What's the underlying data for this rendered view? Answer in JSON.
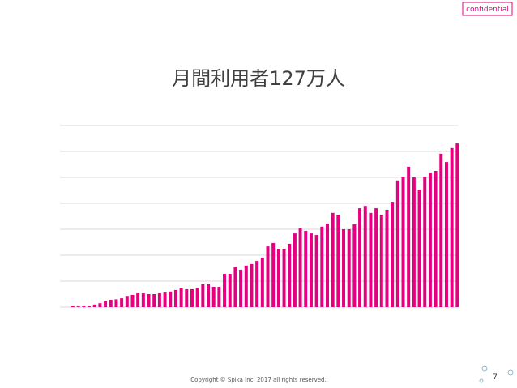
{
  "chart_data": {
    "type": "bar",
    "title": "月間利用者127万人",
    "categories": [
      null,
      null,
      null,
      null,
      null,
      null,
      null,
      null,
      null,
      null,
      null,
      null,
      null,
      null,
      null,
      null,
      null,
      null,
      null,
      null,
      null,
      null,
      null,
      null,
      null,
      null,
      null,
      null,
      null,
      null,
      null,
      null,
      null,
      null,
      null,
      null,
      null,
      null,
      null,
      null,
      null,
      null,
      null,
      null,
      null,
      null,
      null,
      null,
      null,
      null,
      null,
      null,
      null,
      null,
      null,
      null,
      null,
      null,
      null,
      null,
      null,
      null,
      null,
      null,
      null,
      null,
      null,
      null,
      null,
      null,
      null,
      null
    ],
    "values": [
      0.03,
      0.03,
      0.03,
      0.03,
      0.1,
      0.15,
      0.22,
      0.28,
      0.3,
      0.34,
      0.4,
      0.47,
      0.53,
      0.53,
      0.5,
      0.5,
      0.53,
      0.56,
      0.6,
      0.66,
      0.72,
      0.69,
      0.69,
      0.75,
      0.88,
      0.88,
      0.78,
      0.78,
      1.28,
      1.28,
      1.53,
      1.44,
      1.6,
      1.66,
      1.78,
      1.9,
      2.34,
      2.47,
      2.25,
      2.25,
      2.44,
      2.84,
      3.03,
      2.94,
      2.84,
      2.78,
      3.1,
      3.22,
      3.63,
      3.56,
      3.0,
      3.0,
      3.19,
      3.81,
      3.9,
      3.63,
      3.81,
      3.56,
      3.75,
      4.06,
      4.88,
      5.03,
      5.41,
      5.0,
      4.53,
      5.03,
      5.19,
      5.25,
      5.91,
      5.59,
      6.13,
      6.31
    ],
    "color": "#e4007f",
    "ylim": [
      0,
      7
    ],
    "yticks": [
      0,
      1,
      2,
      3,
      4,
      5,
      6,
      7
    ],
    "grid": true
  },
  "badge": "confidential",
  "footer": "Copyright © Spika Inc. 2017 all rights reserved.",
  "page_number": 7
}
